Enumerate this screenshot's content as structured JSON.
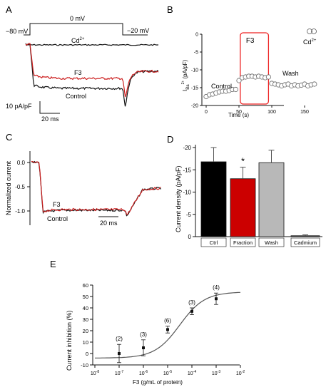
{
  "figure": {
    "panels": {
      "A": {
        "label": "A",
        "protocol": {
          "hold_label": "−80 mV",
          "step_label": "0 mV",
          "tail_label": "−20 mV"
        },
        "trace_labels": {
          "cd": "Cd",
          "cd_sup": "2+",
          "f3": "F3",
          "control": "Control"
        },
        "scalebar": {
          "y_label": "10 pA/pF",
          "x_label": "20 ms"
        },
        "colors": {
          "control": "#111111",
          "f3": "#cc1f1f",
          "cd": "#111111"
        }
      },
      "B": {
        "label": "B",
        "box_label": "F3",
        "annotations": {
          "control": "Control",
          "wash": "Wash",
          "cd": "Cd",
          "cd_sup": "2+"
        }
      },
      "C": {
        "label": "C",
        "trace_labels": {
          "f3": "F3",
          "control": "Control"
        },
        "scalebar": {
          "x_label": "20 ms"
        }
      },
      "D": {
        "label": "D",
        "star": "*"
      },
      "E": {
        "label": "E"
      }
    }
  },
  "chart_data": [
    {
      "panel": "B",
      "type": "scatter",
      "xlabel": "Time (s)",
      "ylabel_main": "I",
      "ylabel_sub": "Ba",
      "ylabel_sup": "2+",
      "ylabel_unit": " (pA/pF)",
      "xlim": [
        -5,
        175
      ],
      "ylim": [
        -20,
        0
      ],
      "x_ticks": [
        0,
        50,
        100,
        150
      ],
      "y_ticks": [
        -20,
        -15,
        -10,
        -5,
        0
      ],
      "x_tick_labels": [
        "0",
        "50",
        "100",
        "150"
      ],
      "y_tick_labels": [
        "-20",
        "-15",
        "-10",
        "-5",
        "0"
      ],
      "series": [
        {
          "x": [
            0,
            5,
            10,
            15,
            20,
            25,
            30,
            35,
            40,
            45,
            50,
            55,
            60,
            65,
            70,
            75,
            80,
            85,
            90,
            95,
            100,
            105,
            110,
            115,
            120,
            125,
            130,
            135,
            140,
            145,
            150,
            155,
            160,
            165
          ],
          "y": [
            -17.5,
            -17,
            -16.8,
            -16.5,
            -16.2,
            -16.0,
            -16.0,
            -15.8,
            -15.5,
            -15.5,
            -13.0,
            -12.2,
            -12.0,
            -11.8,
            -11.8,
            -12.0,
            -11.8,
            -12.0,
            -12.2,
            -12.0,
            -13.8,
            -14.0,
            -14.2,
            -14.5,
            -14.2,
            -14.0,
            -14.5,
            -14.2,
            -14.5,
            -14.3,
            -14.0,
            -14.5,
            -14.2,
            -14.0
          ]
        }
      ],
      "highlight_x": [
        52,
        95
      ]
    },
    {
      "panel": "D",
      "type": "bar",
      "ylabel": "Current density (pA/pF)",
      "ylim": [
        0,
        -20
      ],
      "y_ticks": [
        0,
        -5,
        -10,
        -15,
        -20
      ],
      "y_tick_labels": [
        "0",
        "-5",
        "-10",
        "-15",
        "-20"
      ],
      "categories": [
        "Ctrl",
        "Fraction",
        "Wash",
        "Cadmium"
      ],
      "values": [
        -16.8,
        -13.0,
        -16.6,
        -0.2
      ],
      "errors": [
        3.2,
        2.6,
        2.8,
        0.2
      ],
      "colors": [
        "#000000",
        "#cc0000",
        "#b8b8b8",
        "#555555"
      ]
    },
    {
      "panel": "E",
      "type": "scatter",
      "xlabel": "F3 (g/mL of protein)",
      "ylabel": "Current inhibition (%)",
      "x_scale": "log",
      "xlim_exp": [
        -8,
        -2
      ],
      "ylim": [
        -10,
        60
      ],
      "y_ticks": [
        -10,
        0,
        10,
        20,
        30,
        40,
        50,
        60
      ],
      "y_tick_labels": [
        "-10",
        "0",
        "10",
        "20",
        "30",
        "40",
        "50",
        "60"
      ],
      "x_tick_base": "10",
      "x_tick_exps": [
        "-8",
        "-7",
        "-6",
        "-5",
        "-4",
        "-3",
        "-2"
      ],
      "points": [
        {
          "x_exp": -7,
          "y": 0,
          "err": 8,
          "n": "(2)"
        },
        {
          "x_exp": -6,
          "y": 5,
          "err": 7,
          "n": "(3)"
        },
        {
          "x_exp": -5,
          "y": 21,
          "err": 3,
          "n": "(6)"
        },
        {
          "x_exp": -4,
          "y": 37,
          "err": 3,
          "n": "(3)"
        },
        {
          "x_exp": -3,
          "y": 48,
          "err": 5,
          "n": "(4)"
        }
      ]
    }
  ]
}
